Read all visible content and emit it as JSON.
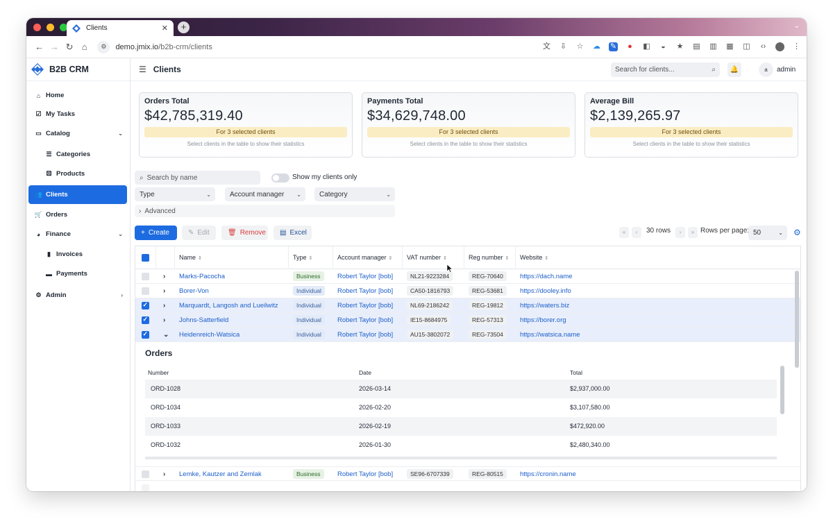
{
  "browser": {
    "tab_title": "Clients",
    "url_host": "demo.jmix.io",
    "url_path": "/b2b-crm/clients"
  },
  "app": {
    "brand": "B2B CRM",
    "page_title": "Clients",
    "search_placeholder": "Search for clients...",
    "user_initial": "a",
    "username": "admin"
  },
  "sidebar": {
    "items": [
      {
        "label": "Home",
        "icon": "home-icon"
      },
      {
        "label": "My Tasks",
        "icon": "check-square-icon"
      },
      {
        "label": "Catalog",
        "icon": "book-icon"
      },
      {
        "label": "Categories",
        "icon": "list-icon"
      },
      {
        "label": "Products",
        "icon": "cubes-icon"
      },
      {
        "label": "Clients",
        "icon": "users-icon"
      },
      {
        "label": "Orders",
        "icon": "cart-icon"
      },
      {
        "label": "Finance",
        "icon": "pie-chart-icon"
      },
      {
        "label": "Invoices",
        "icon": "file-icon"
      },
      {
        "label": "Payments",
        "icon": "wallet-icon"
      },
      {
        "label": "Admin",
        "icon": "gear-icon"
      }
    ]
  },
  "cards": [
    {
      "title": "Orders Total",
      "value": "$42,785,319.40",
      "badge": "For 3 selected clients",
      "hint": "Select clients in the table to show their statistics"
    },
    {
      "title": "Payments Total",
      "value": "$34,629,748.00",
      "badge": "For 3 selected clients",
      "hint": "Select clients in the table to show their statistics"
    },
    {
      "title": "Average Bill",
      "value": "$2,139,265.97",
      "badge": "For 3 selected clients",
      "hint": "Select clients in the table to show their statistics"
    }
  ],
  "filters": {
    "search_placeholder": "Search by name",
    "toggle_label": "Show my clients only",
    "type": "Type",
    "manager": "Account manager",
    "category": "Category",
    "advanced": "Advanced"
  },
  "actions": {
    "create": "Create",
    "edit": "Edit",
    "remove": "Remove",
    "excel": "Excel",
    "rows": "30 rows",
    "rows_per_page_label": "Rows per page:",
    "rows_per_page": "50"
  },
  "table": {
    "columns": [
      "Name",
      "Type",
      "Account manager",
      "VAT number",
      "Reg number",
      "Website"
    ],
    "rows": [
      {
        "name": "Marks-Pacocha",
        "type": "Business",
        "manager": "Robert Taylor [bob]",
        "vat": "NL21-9223284",
        "reg": "REG-70640",
        "web": "https://dach.name",
        "checked": false,
        "expanded": false
      },
      {
        "name": "Borer-Von",
        "type": "Individual",
        "manager": "Robert Taylor [bob]",
        "vat": "CA50-1816793",
        "reg": "REG-53681",
        "web": "https://dooley.info",
        "checked": false,
        "expanded": false
      },
      {
        "name": "Marquardt, Langosh and Lueilwitz",
        "type": "Individual",
        "manager": "Robert Taylor [bob]",
        "vat": "NL69-2186242",
        "reg": "REG-19812",
        "web": "https://waters.biz",
        "checked": true,
        "expanded": false
      },
      {
        "name": "Johns-Satterfield",
        "type": "Individual",
        "manager": "Robert Taylor [bob]",
        "vat": "IE15-8684975",
        "reg": "REG-57313",
        "web": "https://borer.org",
        "checked": true,
        "expanded": false
      },
      {
        "name": "Heidenreich-Watsica",
        "type": "Individual",
        "manager": "Robert Taylor [bob]",
        "vat": "AU15-3802072",
        "reg": "REG-73504",
        "web": "https://watsica.name",
        "checked": true,
        "expanded": true
      }
    ],
    "after_rows": [
      {
        "name": "Lemke, Kautzer and Zemlak",
        "type": "Business",
        "manager": "Robert Taylor [bob]",
        "vat": "SE96-6707339",
        "reg": "REG-80515",
        "web": "https://cronin.name",
        "checked": false,
        "expanded": false
      }
    ]
  },
  "orders": {
    "title": "Orders",
    "columns": [
      "Number",
      "Date",
      "Total"
    ],
    "rows": [
      {
        "number": "ORD-1028",
        "date": "2026-03-14",
        "total": "$2,937,000.00"
      },
      {
        "number": "ORD-1034",
        "date": "2026-02-20",
        "total": "$3,107,580.00"
      },
      {
        "number": "ORD-1033",
        "date": "2026-02-19",
        "total": "$472,920.00"
      },
      {
        "number": "ORD-1032",
        "date": "2026-01-30",
        "total": "$2,480,340.00"
      }
    ]
  },
  "colors": {
    "accent": "#1d6be0",
    "selected_row": "#e8eefb",
    "badge_bg": "#fbedc3",
    "remove": "#d93b3b"
  }
}
